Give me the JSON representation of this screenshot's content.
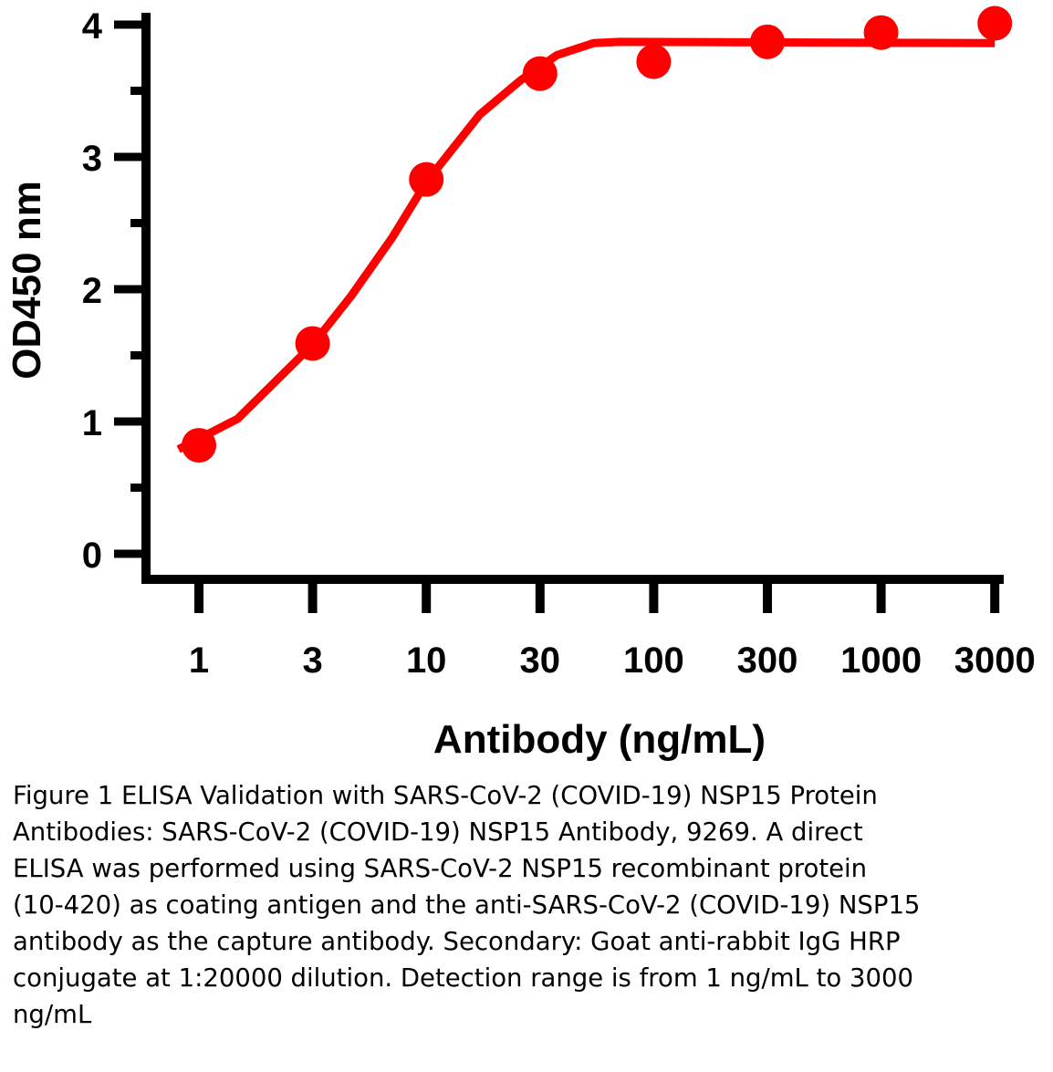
{
  "chart_data": {
    "type": "line",
    "title": "",
    "xlabel": "Antibody (ng/mL)",
    "ylabel": "OD450 nm",
    "x_scale": "log (categorical tick spacing)",
    "ylim": [
      0,
      4
    ],
    "yticks": [
      "0",
      "1",
      "2",
      "3",
      "4"
    ],
    "y_minor_step": 0.5,
    "categories": [
      "1",
      "3",
      "10",
      "30",
      "100",
      "300",
      "1000",
      "3000"
    ],
    "grid": false,
    "series": [
      {
        "name": "SARS-CoV-2 NSP15 Antibody",
        "color": "#ff0000",
        "x": [
          1,
          3,
          10,
          30,
          100,
          300,
          1000,
          3000
        ],
        "values": [
          0.82,
          1.59,
          2.83,
          3.63,
          3.72,
          3.87,
          3.94,
          4.01
        ],
        "fit_curve_tick_index": [
          -0.18,
          0.34,
          1.0,
          1.34,
          1.7,
          2.0,
          2.47,
          2.83,
          3.15,
          3.47,
          3.7,
          7.0
        ],
        "fit_curve_values": [
          0.79,
          1.02,
          1.58,
          1.95,
          2.39,
          2.81,
          3.32,
          3.58,
          3.77,
          3.86,
          3.87,
          3.86
        ]
      }
    ]
  },
  "caption": "Figure 1 ELISA Validation with SARS-CoV-2 (COVID-19) NSP15 Protein Antibodies: SARS-CoV-2 (COVID-19) NSP15 Antibody, 9269. A direct ELISA was performed using SARS-CoV-2 NSP15 recombinant protein (10-420) as coating antigen and the anti-SARS-CoV-2 (COVID-19) NSP15 antibody as the capture antibody. Secondary: Goat anti-rabbit IgG HRP conjugate at 1:20000 dilution. Detection range is from 1 ng/mL to 3000 ng/mL"
}
